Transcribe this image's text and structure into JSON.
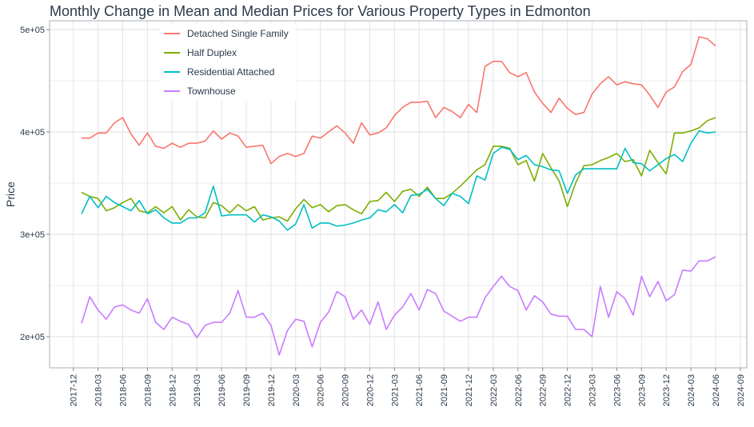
{
  "chart_data": {
    "type": "line",
    "title": "Monthly Change in Mean and Median Prices for Various Property Types in Edmonton",
    "xlabel": "",
    "ylabel": "Price",
    "ylim": [
      165000,
      505000
    ],
    "yticks": [
      200000,
      300000,
      400000,
      500000
    ],
    "ytick_labels": [
      "2e+05",
      "3e+05",
      "4e+05",
      "5e+05"
    ],
    "xticks": [
      "2017-12",
      "2018-03",
      "2018-06",
      "2018-09",
      "2018-12",
      "2019-03",
      "2019-06",
      "2019-09",
      "2019-12",
      "2020-03",
      "2020-06",
      "2020-09",
      "2020-12",
      "2021-03",
      "2021-06",
      "2021-09",
      "2021-12",
      "2022-03",
      "2022-06",
      "2022-09",
      "2022-12",
      "2023-03",
      "2023-06",
      "2023-09",
      "2023-12",
      "2024-03",
      "2024-06",
      "2024-09"
    ],
    "x_start": "2018-01",
    "x_end": "2024-06",
    "grid": true,
    "legend_position": "top-left-inside",
    "series": [
      {
        "name": "Detached Single Family",
        "color": "#F8766D",
        "values": [
          394000,
          394000,
          399000,
          399000,
          409000,
          414000,
          398000,
          387000,
          399000,
          386000,
          384000,
          389000,
          385000,
          389000,
          389000,
          391000,
          401000,
          393000,
          399000,
          396000,
          385000,
          386000,
          387000,
          369000,
          376000,
          379000,
          376000,
          379000,
          396000,
          394000,
          400000,
          406000,
          399000,
          389000,
          409000,
          397000,
          399000,
          404000,
          416000,
          424000,
          429000,
          429000,
          430000,
          414000,
          424000,
          420000,
          414000,
          427000,
          419000,
          464000,
          469000,
          469000,
          458000,
          454000,
          458000,
          439000,
          428000,
          419000,
          433000,
          423000,
          417000,
          419000,
          437000,
          447000,
          454000,
          446000,
          449000,
          447000,
          446000,
          436000,
          424000,
          439000,
          444000,
          459000,
          466000,
          493000,
          491000,
          484000
        ]
      },
      {
        "name": "Half Duplex",
        "color": "#7CAE00",
        "values": [
          341000,
          337000,
          335000,
          323000,
          326000,
          331000,
          335000,
          323000,
          321000,
          327000,
          321000,
          327000,
          314000,
          324000,
          317000,
          316000,
          331000,
          328000,
          321000,
          329000,
          323000,
          327000,
          314000,
          316000,
          317000,
          313000,
          325000,
          334000,
          326000,
          329000,
          322000,
          328000,
          329000,
          324000,
          320000,
          332000,
          333000,
          341000,
          332000,
          342000,
          344000,
          337000,
          346000,
          335000,
          335000,
          340000,
          347000,
          355000,
          363000,
          368000,
          386000,
          386000,
          384000,
          368000,
          372000,
          352000,
          379000,
          365000,
          352000,
          327000,
          350000,
          367000,
          368000,
          372000,
          375000,
          379000,
          371000,
          373000,
          357000,
          382000,
          370000,
          359000,
          399000,
          399000,
          401000,
          404000,
          411000,
          414000
        ]
      },
      {
        "name": "Residential Attached",
        "color": "#00BFC4",
        "values": [
          320000,
          337000,
          326000,
          337000,
          331000,
          327000,
          323000,
          333000,
          320000,
          324000,
          316000,
          311000,
          311000,
          316000,
          316000,
          321000,
          347000,
          318000,
          319000,
          319000,
          319000,
          312000,
          319000,
          317000,
          313000,
          304000,
          310000,
          329000,
          306000,
          311000,
          311000,
          308000,
          309000,
          311000,
          314000,
          316000,
          324000,
          322000,
          329000,
          321000,
          338000,
          339000,
          344000,
          335000,
          328000,
          340000,
          337000,
          330000,
          357000,
          353000,
          379000,
          385000,
          383000,
          373000,
          377000,
          368000,
          366000,
          363000,
          362000,
          340000,
          358000,
          364000,
          364000,
          364000,
          364000,
          364000,
          384000,
          370000,
          369000,
          362000,
          368000,
          374000,
          378000,
          371000,
          389000,
          401000,
          399000,
          400000
        ]
      },
      {
        "name": "Townhouse",
        "color": "#C77CFF",
        "values": [
          213000,
          239000,
          226000,
          217000,
          229000,
          231000,
          226000,
          223000,
          237000,
          214000,
          207000,
          219000,
          215000,
          212000,
          199000,
          211000,
          214000,
          214000,
          223000,
          245000,
          219000,
          219000,
          223000,
          211000,
          182000,
          206000,
          217000,
          215000,
          190000,
          214000,
          224000,
          244000,
          239000,
          217000,
          226000,
          212000,
          234000,
          207000,
          221000,
          229000,
          242000,
          226000,
          246000,
          242000,
          225000,
          220000,
          215000,
          219000,
          219000,
          238000,
          249000,
          259000,
          249000,
          245000,
          226000,
          240000,
          234000,
          222000,
          220000,
          220000,
          207000,
          207000,
          200000,
          249000,
          219000,
          244000,
          237000,
          221000,
          259000,
          239000,
          254000,
          235000,
          241000,
          265000,
          264000,
          274000,
          274000,
          278000
        ]
      }
    ]
  }
}
